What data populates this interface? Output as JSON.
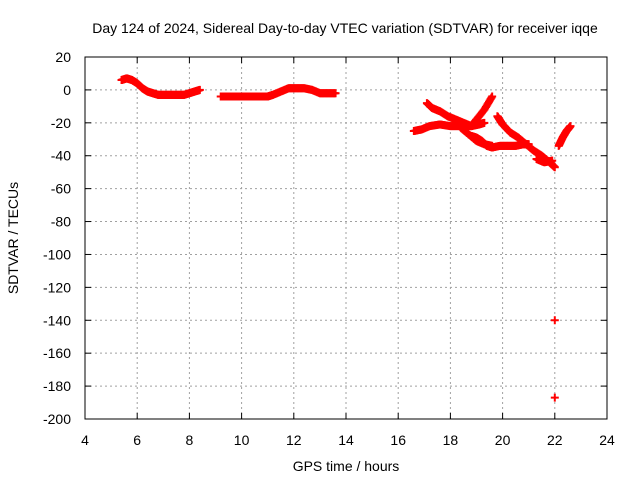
{
  "chart_data": {
    "type": "scatter",
    "title": "Day 124 of 2024, Sidereal Day-to-day VTEC variation (SDTVAR) for receiver iqqe",
    "xlabel": "GPS time / hours",
    "ylabel": "SDTVAR / TECUs",
    "xlim": [
      4,
      24
    ],
    "ylim": [
      -200,
      20
    ],
    "xticks": [
      4,
      6,
      8,
      10,
      12,
      14,
      16,
      18,
      20,
      22,
      24
    ],
    "yticks": [
      20,
      0,
      -20,
      -40,
      -60,
      -80,
      -100,
      -120,
      -140,
      -160,
      -180,
      -200
    ],
    "grid": true,
    "marker": "+",
    "color": "#ff0000",
    "series": [
      {
        "name": "track-1",
        "x": [
          5.4,
          5.6,
          5.8,
          6.0,
          6.2,
          6.4,
          6.6,
          6.8,
          7.0,
          7.2,
          7.4,
          7.6,
          7.8,
          8.0,
          8.2,
          8.4
        ],
        "y": [
          6,
          7,
          6,
          4,
          1,
          -1,
          -2,
          -3,
          -3,
          -3,
          -3,
          -3,
          -3,
          -2,
          -1,
          0
        ]
      },
      {
        "name": "track-2",
        "x": [
          9.2,
          9.6,
          10.0,
          10.4,
          10.8,
          11.0,
          11.2,
          11.5,
          11.8,
          12.1,
          12.4,
          12.7,
          13.0,
          13.3,
          13.6
        ],
        "y": [
          -4,
          -4,
          -4,
          -4,
          -4,
          -4,
          -3,
          -1,
          1,
          1,
          1,
          0,
          -2,
          -2,
          -2
        ]
      },
      {
        "name": "track-3",
        "x": [
          16.6,
          16.9,
          17.2,
          17.6,
          18.0,
          18.4,
          18.8,
          19.1,
          19.3
        ],
        "y": [
          -25,
          -24,
          -22,
          -21,
          -22,
          -22,
          -22,
          -21,
          -20
        ]
      },
      {
        "name": "track-4",
        "x": [
          17.1,
          17.3,
          17.6,
          17.9,
          18.2,
          18.5,
          18.8,
          19.0,
          19.3,
          19.6
        ],
        "y": [
          -8,
          -11,
          -13,
          -16,
          -18,
          -20,
          -22,
          -18,
          -12,
          -4
        ]
      },
      {
        "name": "track-5",
        "x": [
          18.8,
          19.0,
          19.2,
          19.4,
          19.6,
          19.9,
          20.2,
          20.5,
          20.8,
          21.0
        ],
        "y": [
          -28,
          -29,
          -31,
          -34,
          -35,
          -34,
          -34,
          -34,
          -33,
          -33
        ]
      },
      {
        "name": "track-6",
        "x": [
          18.4,
          18.7,
          19.0,
          19.3,
          19.6
        ],
        "y": [
          -23,
          -27,
          -31,
          -33,
          -34
        ]
      },
      {
        "name": "track-7",
        "x": [
          19.8,
          20.0,
          20.3,
          20.6,
          20.9,
          21.2,
          21.5,
          21.8,
          22.0
        ],
        "y": [
          -16,
          -21,
          -26,
          -29,
          -33,
          -37,
          -40,
          -44,
          -47
        ]
      },
      {
        "name": "track-8",
        "x": [
          21.3,
          21.6,
          21.9
        ],
        "y": [
          -42,
          -44,
          -43
        ]
      },
      {
        "name": "track-9",
        "x": [
          22.15,
          22.3,
          22.45,
          22.6
        ],
        "y": [
          -34,
          -29,
          -25,
          -22
        ]
      },
      {
        "name": "outliers",
        "x": [
          22.0,
          22.0
        ],
        "y": [
          -140,
          -187
        ]
      }
    ]
  }
}
